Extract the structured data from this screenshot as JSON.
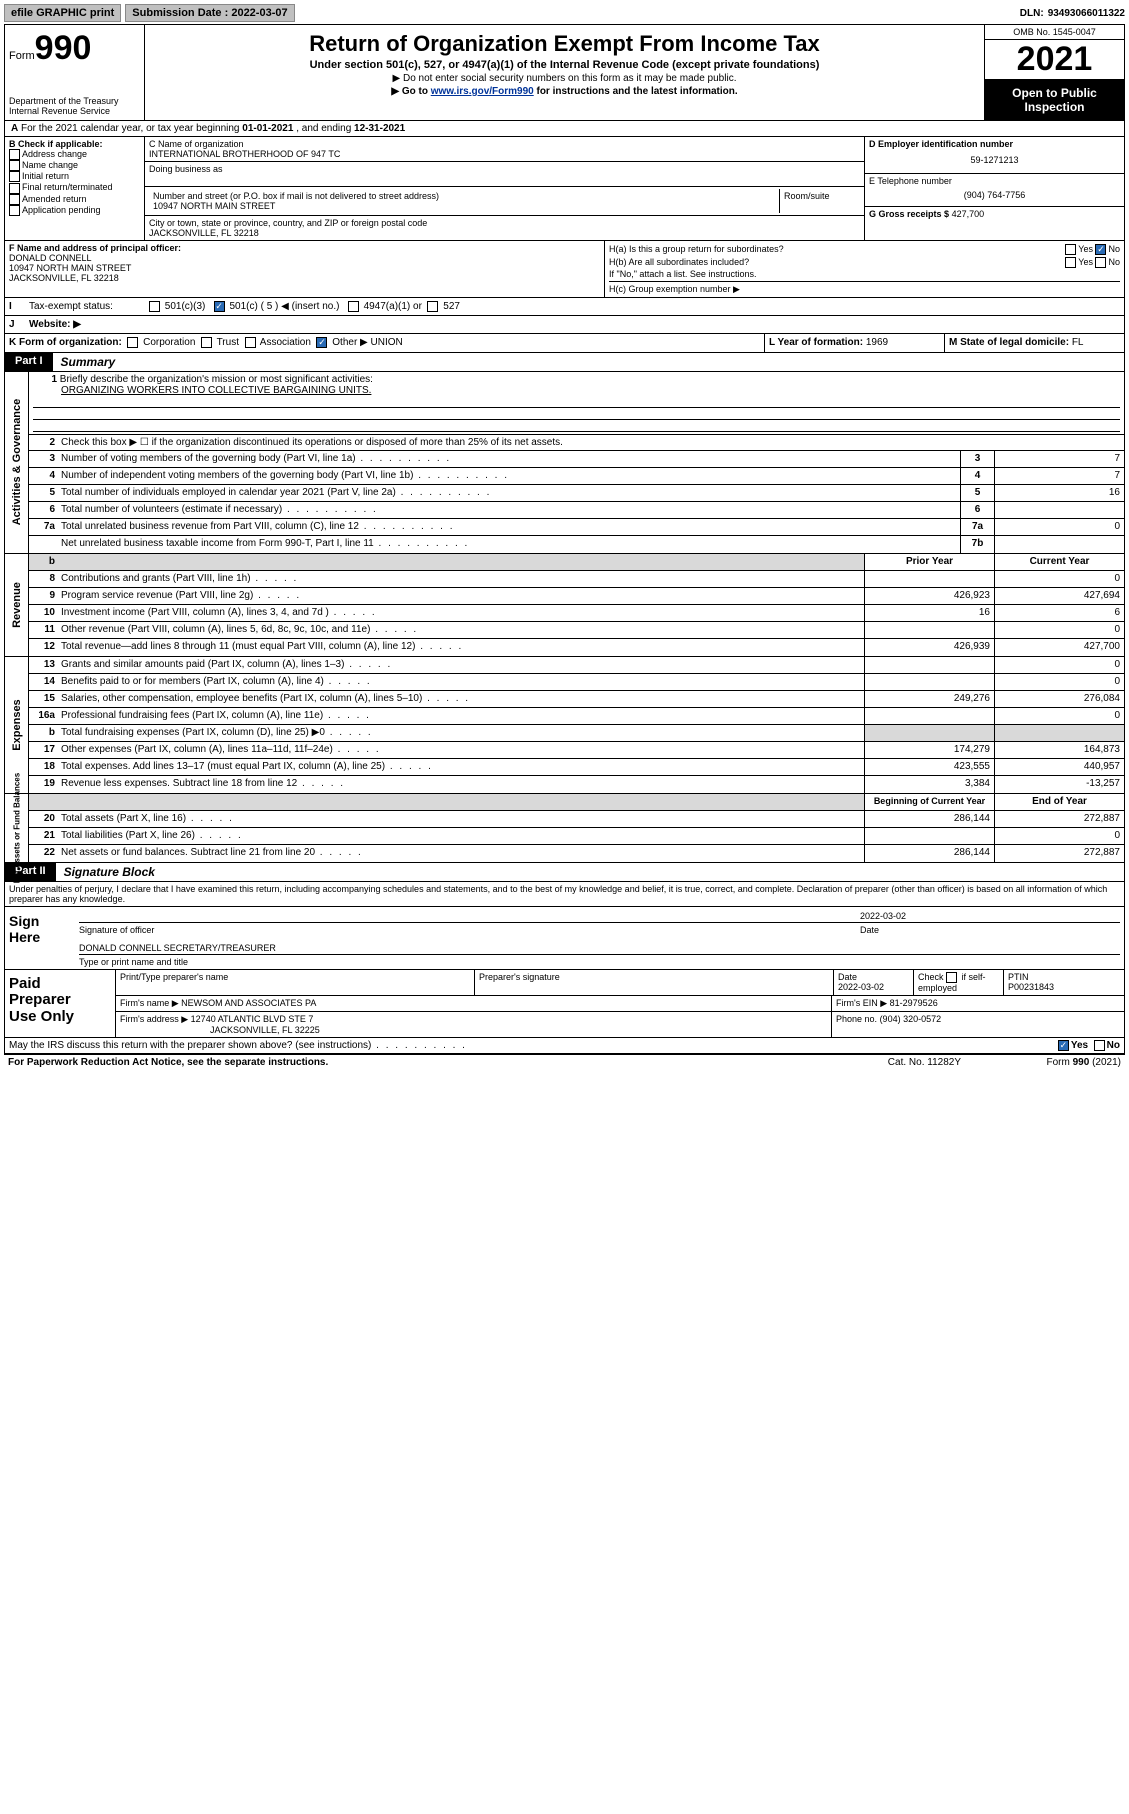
{
  "topbar": {
    "efile": "efile GRAPHIC print",
    "sub_lbl": "Submission Date :",
    "sub_date": "2022-03-07",
    "dln_lbl": "DLN:",
    "dln": "93493066011322"
  },
  "header": {
    "form_word": "Form",
    "form_no": "990",
    "dept": "Department of the Treasury",
    "irs": "Internal Revenue Service",
    "title": "Return of Organization Exempt From Income Tax",
    "sub1": "Under section 501(c), 527, or 4947(a)(1) of the Internal Revenue Code (except private foundations)",
    "sub2": "▶ Do not enter social security numbers on this form as it may be made public.",
    "sub3_pre": "▶ Go to ",
    "sub3_link": "www.irs.gov/Form990",
    "sub3_post": " for instructions and the latest information.",
    "omb": "OMB No. 1545-0047",
    "year": "2021",
    "otp1": "Open to Public",
    "otp2": "Inspection"
  },
  "A": {
    "text_pre": "For the 2021 calendar year, or tax year beginning ",
    "begin": "01-01-2021",
    "mid": " , and ending ",
    "end": "12-31-2021"
  },
  "B": {
    "title": "B Check if applicable:",
    "items": [
      "Address change",
      "Name change",
      "Initial return",
      "Final return/terminated",
      "Amended return",
      "Application pending"
    ]
  },
  "C": {
    "name_lbl": "C Name of organization",
    "name": "INTERNATIONAL BROTHERHOOD OF 947 TC",
    "dba_lbl": "Doing business as",
    "addr_lbl": "Number and street (or P.O. box if mail is not delivered to street address)",
    "room_lbl": "Room/suite",
    "addr": "10947 NORTH MAIN STREET",
    "city_lbl": "City or town, state or province, country, and ZIP or foreign postal code",
    "city": "JACKSONVILLE, FL  32218"
  },
  "D": {
    "lbl": "D Employer identification number",
    "val": "59-1271213"
  },
  "E": {
    "lbl": "E Telephone number",
    "val": "(904) 764-7756"
  },
  "G": {
    "lbl": "G Gross receipts $",
    "val": "427,700"
  },
  "F": {
    "lbl": "F Name and address of principal officer:",
    "name": "DONALD CONNELL",
    "addr1": "10947 NORTH MAIN STREET",
    "addr2": "JACKSONVILLE, FL  32218"
  },
  "H": {
    "a": "H(a)  Is this a group return for subordinates?",
    "b": "H(b)  Are all subordinates included?",
    "b_note": "If \"No,\" attach a list. See instructions.",
    "c": "H(c)  Group exemption number ▶",
    "yes": "Yes",
    "no": "No"
  },
  "I": {
    "lbl": "Tax-exempt status:",
    "o1": "501(c)(3)",
    "o2": "501(c) ( 5 ) ◀ (insert no.)",
    "o3": "4947(a)(1) or",
    "o4": "527"
  },
  "J": {
    "lbl": "Website: ▶"
  },
  "K": {
    "lbl": "K Form of organization:",
    "opts": [
      "Corporation",
      "Trust",
      "Association",
      "Other ▶"
    ],
    "other_val": "UNION"
  },
  "L": {
    "lbl": "L Year of formation:",
    "val": "1969"
  },
  "M": {
    "lbl": "M State of legal domicile:",
    "val": "FL"
  },
  "partI": {
    "tag": "Part I",
    "title": "Summary",
    "l1_pre": "Briefly describe the organization's mission or most significant activities:",
    "l1_val": "ORGANIZING WORKERS INTO COLLECTIVE BARGAINING UNITS.",
    "l2": "Check this box ▶ ☐  if the organization discontinued its operations or disposed of more than 25% of its net assets.",
    "rows_gov": [
      {
        "n": "3",
        "d": "Number of voting members of the governing body (Part VI, line 1a)",
        "b": "3",
        "v": "7"
      },
      {
        "n": "4",
        "d": "Number of independent voting members of the governing body (Part VI, line 1b)",
        "b": "4",
        "v": "7"
      },
      {
        "n": "5",
        "d": "Total number of individuals employed in calendar year 2021 (Part V, line 2a)",
        "b": "5",
        "v": "16"
      },
      {
        "n": "6",
        "d": "Total number of volunteers (estimate if necessary)",
        "b": "6",
        "v": ""
      },
      {
        "n": "7a",
        "d": "Total unrelated business revenue from Part VIII, column (C), line 12",
        "b": "7a",
        "v": "0"
      },
      {
        "n": "",
        "d": "Net unrelated business taxable income from Form 990-T, Part I, line 11",
        "b": "7b",
        "v": ""
      }
    ],
    "col_b": "b",
    "col_py": "Prior Year",
    "col_cy": "Current Year",
    "rows_rev": [
      {
        "n": "8",
        "d": "Contributions and grants (Part VIII, line 1h)",
        "py": "",
        "cy": "0"
      },
      {
        "n": "9",
        "d": "Program service revenue (Part VIII, line 2g)",
        "py": "426,923",
        "cy": "427,694"
      },
      {
        "n": "10",
        "d": "Investment income (Part VIII, column (A), lines 3, 4, and 7d )",
        "py": "16",
        "cy": "6"
      },
      {
        "n": "11",
        "d": "Other revenue (Part VIII, column (A), lines 5, 6d, 8c, 9c, 10c, and 11e)",
        "py": "",
        "cy": "0"
      },
      {
        "n": "12",
        "d": "Total revenue—add lines 8 through 11 (must equal Part VIII, column (A), line 12)",
        "py": "426,939",
        "cy": "427,700"
      }
    ],
    "rows_exp": [
      {
        "n": "13",
        "d": "Grants and similar amounts paid (Part IX, column (A), lines 1–3)",
        "py": "",
        "cy": "0"
      },
      {
        "n": "14",
        "d": "Benefits paid to or for members (Part IX, column (A), line 4)",
        "py": "",
        "cy": "0"
      },
      {
        "n": "15",
        "d": "Salaries, other compensation, employee benefits (Part IX, column (A), lines 5–10)",
        "py": "249,276",
        "cy": "276,084"
      },
      {
        "n": "16a",
        "d": "Professional fundraising fees (Part IX, column (A), line 11e)",
        "py": "",
        "cy": "0"
      },
      {
        "n": "b",
        "d": "Total fundraising expenses (Part IX, column (D), line 25) ▶0",
        "py": "shade",
        "cy": "shade"
      },
      {
        "n": "17",
        "d": "Other expenses (Part IX, column (A), lines 11a–11d, 11f–24e)",
        "py": "174,279",
        "cy": "164,873"
      },
      {
        "n": "18",
        "d": "Total expenses. Add lines 13–17 (must equal Part IX, column (A), line 25)",
        "py": "423,555",
        "cy": "440,957"
      },
      {
        "n": "19",
        "d": "Revenue less expenses. Subtract line 18 from line 12",
        "py": "3,384",
        "cy": "-13,257"
      }
    ],
    "col_boy": "Beginning of Current Year",
    "col_eoy": "End of Year",
    "rows_na": [
      {
        "n": "20",
        "d": "Total assets (Part X, line 16)",
        "py": "286,144",
        "cy": "272,887"
      },
      {
        "n": "21",
        "d": "Total liabilities (Part X, line 26)",
        "py": "",
        "cy": "0"
      },
      {
        "n": "22",
        "d": "Net assets or fund balances. Subtract line 21 from line 20",
        "py": "286,144",
        "cy": "272,887"
      }
    ]
  },
  "partII": {
    "tag": "Part II",
    "title": "Signature Block",
    "decl": "Under penalties of perjury, I declare that I have examined this return, including accompanying schedules and statements, and to the best of my knowledge and belief, it is true, correct, and complete. Declaration of preparer (other than officer) is based on all information of which preparer has any knowledge.",
    "sign_here": "Sign Here",
    "sig_officer": "Signature of officer",
    "date_lbl": "Date",
    "date_val": "2022-03-02",
    "name_title": "DONALD CONNELL  SECRETARY/TREASURER",
    "type_lbl": "Type or print name and title"
  },
  "prep": {
    "lbl1": "Paid",
    "lbl2": "Preparer",
    "lbl3": "Use Only",
    "h1": "Print/Type preparer's name",
    "h2": "Preparer's signature",
    "h3": "Date",
    "h3v": "2022-03-02",
    "h4a": "Check",
    "h4b": "if self-employed",
    "h5": "PTIN",
    "h5v": "P00231843",
    "firm_name_lbl": "Firm's name    ▶",
    "firm_name": "NEWSOM AND ASSOCIATES PA",
    "firm_ein_lbl": "Firm's EIN ▶",
    "firm_ein": "81-2979526",
    "firm_addr_lbl": "Firm's address ▶",
    "firm_addr1": "12740 ATLANTIC BLVD STE 7",
    "firm_addr2": "JACKSONVILLE, FL  32225",
    "phone_lbl": "Phone no.",
    "phone": "(904) 320-0572"
  },
  "discuss": {
    "q": "May the IRS discuss this return with the preparer shown above? (see instructions)",
    "yes": "Yes",
    "no": "No"
  },
  "footer": {
    "pra": "For Paperwork Reduction Act Notice, see the separate instructions.",
    "cat": "Cat. No. 11282Y",
    "form": "Form 990 (2021)"
  },
  "vlabels": {
    "gov": "Activities & Governance",
    "rev": "Revenue",
    "exp": "Expenses",
    "na": "Net Assets or Fund Balances"
  }
}
